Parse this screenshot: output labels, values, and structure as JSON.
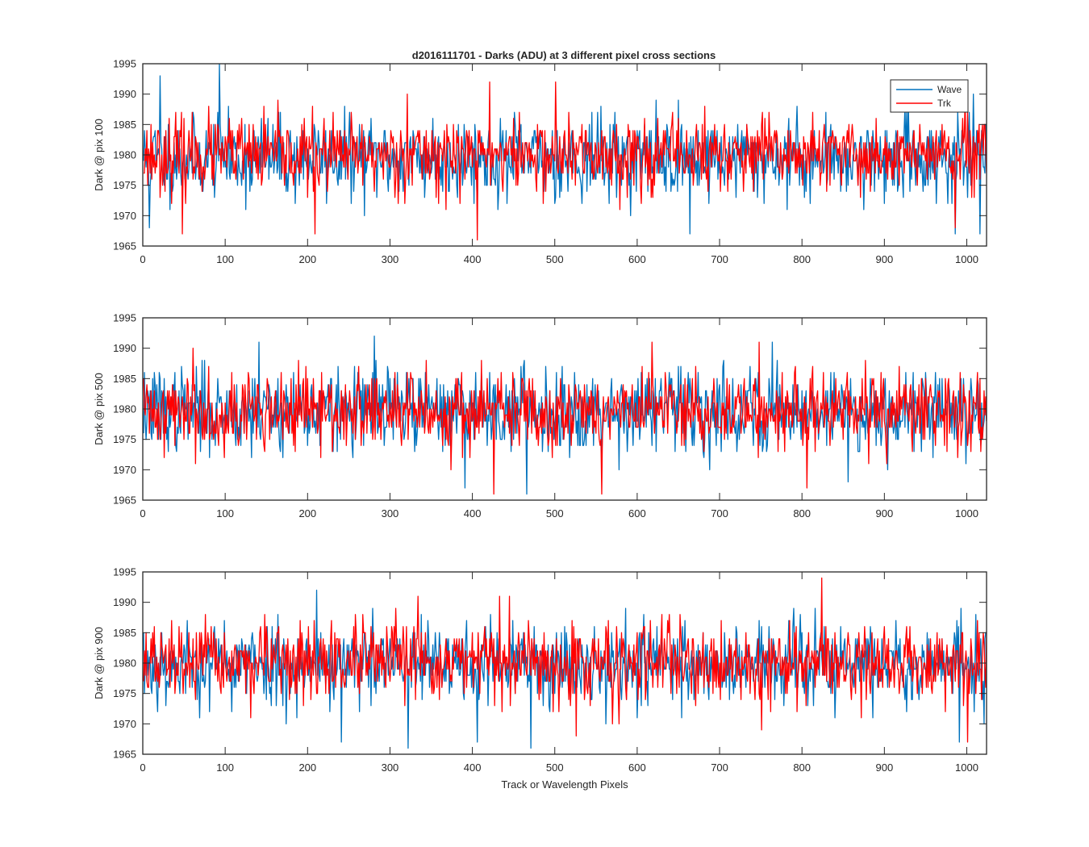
{
  "figure_title": "d2016111701 - Darks (ADU) at 3 different pixel cross sections",
  "legend": [
    {
      "label": "Wave",
      "color": "#0072BD"
    },
    {
      "label": "Trk",
      "color": "#FF0000"
    }
  ],
  "chart_data": [
    {
      "type": "line",
      "title": "d2016111701 - Darks (ADU) at 3 different pixel cross sections",
      "xlabel": "",
      "ylabel": "Dark @ pix 100",
      "xlim": [
        0,
        1024
      ],
      "ylim": [
        1965,
        1995
      ],
      "xticks": [
        "0",
        "100",
        "200",
        "300",
        "400",
        "500",
        "600",
        "700",
        "800",
        "900",
        "1000"
      ],
      "yticks": [
        "1965",
        "1970",
        "1975",
        "1980",
        "1985",
        "1990",
        "1995"
      ],
      "legend_position": "top-right",
      "grid": false,
      "series": [
        {
          "name": "Wave",
          "color": "#0072BD",
          "n_points": 1024,
          "mean": 1979.5,
          "std": 3.3,
          "min": 1967,
          "max": 1995,
          "seed": 11,
          "spikes": [
            [
              20,
              1993
            ],
            [
              92,
              1995
            ],
            [
              663,
              1967
            ],
            [
              985,
              1967
            ],
            [
              1015,
              1967
            ],
            [
              7,
              1968
            ]
          ]
        },
        {
          "name": "Trk",
          "color": "#FF0000",
          "n_points": 1024,
          "mean": 1980,
          "std": 3.0,
          "min": 1966,
          "max": 1992,
          "seed": 23,
          "spikes": [
            [
              47,
              1967
            ],
            [
              208,
              1967
            ],
            [
              405,
              1966
            ],
            [
              420,
              1992
            ],
            [
              500,
              1992
            ],
            [
              320,
              1990
            ],
            [
              985,
              1968
            ]
          ]
        }
      ]
    },
    {
      "type": "line",
      "xlabel": "",
      "ylabel": "Dark @ pix 500",
      "xlim": [
        0,
        1024
      ],
      "ylim": [
        1965,
        1995
      ],
      "xticks": [
        "0",
        "100",
        "200",
        "300",
        "400",
        "500",
        "600",
        "700",
        "800",
        "900",
        "1000"
      ],
      "yticks": [
        "1965",
        "1970",
        "1975",
        "1980",
        "1985",
        "1990",
        "1995"
      ],
      "grid": false,
      "series": [
        {
          "name": "Wave",
          "color": "#0072BD",
          "n_points": 1024,
          "mean": 1979.8,
          "std": 3.4,
          "min": 1967,
          "max": 1992,
          "seed": 37,
          "spikes": [
            [
              280,
              1992
            ],
            [
              140,
              1991
            ],
            [
              390,
              1967
            ],
            [
              465,
              1966
            ],
            [
              855,
              1968
            ],
            [
              763,
              1991
            ]
          ]
        },
        {
          "name": "Trk",
          "color": "#FF0000",
          "n_points": 1024,
          "mean": 1979.6,
          "std": 3.2,
          "min": 1966,
          "max": 1991,
          "seed": 41,
          "spikes": [
            [
              425,
              1966
            ],
            [
              556,
              1966
            ],
            [
              617,
              1991
            ],
            [
              747,
              1991
            ],
            [
              60,
              1990
            ],
            [
              805,
              1967
            ]
          ]
        }
      ]
    },
    {
      "type": "line",
      "xlabel": "Track or Wavelength Pixels",
      "ylabel": "Dark @ pix 900",
      "xlim": [
        0,
        1024
      ],
      "ylim": [
        1965,
        1995
      ],
      "xticks": [
        "0",
        "100",
        "200",
        "300",
        "400",
        "500",
        "600",
        "700",
        "800",
        "900",
        "1000"
      ],
      "yticks": [
        "1965",
        "1970",
        "1975",
        "1980",
        "1985",
        "1990",
        "1995"
      ],
      "grid": false,
      "series": [
        {
          "name": "Wave",
          "color": "#0072BD",
          "n_points": 1024,
          "mean": 1979.8,
          "std": 3.4,
          "min": 1966,
          "max": 1992,
          "seed": 53,
          "spikes": [
            [
              210,
              1992
            ],
            [
              321,
              1966
            ],
            [
              470,
              1966
            ],
            [
              405,
              1967
            ],
            [
              240,
              1967
            ],
            [
              990,
              1967
            ]
          ]
        },
        {
          "name": "Trk",
          "color": "#FF0000",
          "n_points": 1024,
          "mean": 1980,
          "std": 3.1,
          "min": 1967,
          "max": 1994,
          "seed": 67,
          "spikes": [
            [
              823,
              1994
            ],
            [
              333,
              1991
            ],
            [
              432,
              1991
            ],
            [
              525,
              1968
            ],
            [
              1000,
              1967
            ],
            [
              750,
              1969
            ]
          ]
        }
      ]
    }
  ]
}
